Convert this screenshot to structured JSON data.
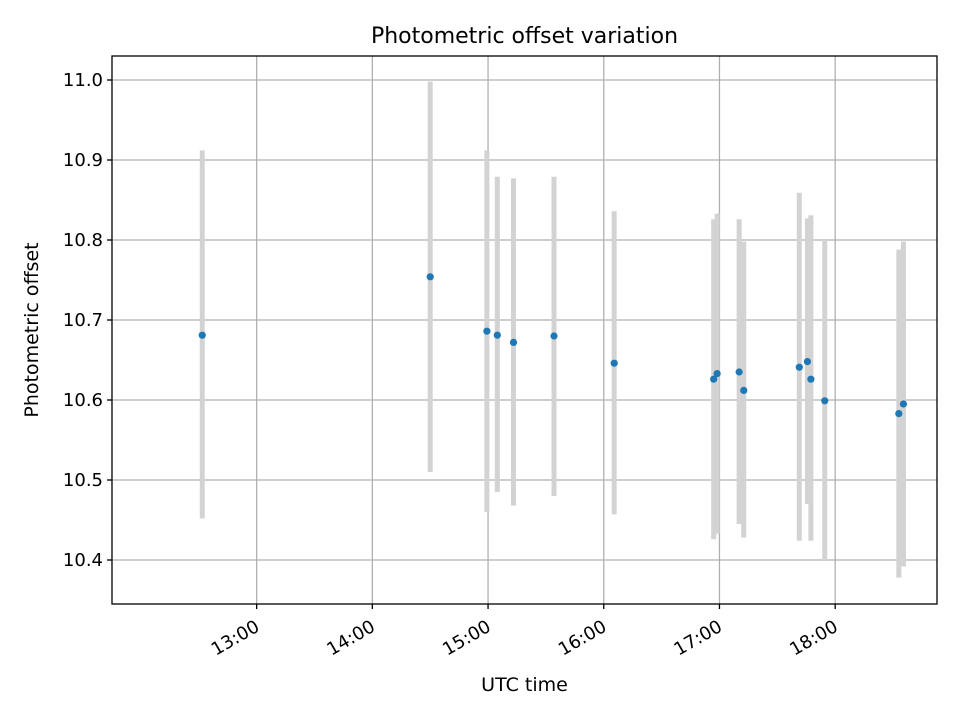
{
  "chart_data": {
    "type": "scatter",
    "title": "Photometric offset variation",
    "xlabel": "UTC time",
    "ylabel": "Photometric offset",
    "x_unit": "hours UTC",
    "xlim": [
      11.75,
      18.88
    ],
    "ylim": [
      10.345,
      11.03
    ],
    "x_ticks": [
      {
        "value": 13,
        "label": "13:00"
      },
      {
        "value": 14,
        "label": "14:00"
      },
      {
        "value": 15,
        "label": "15:00"
      },
      {
        "value": 16,
        "label": "16:00"
      },
      {
        "value": 17,
        "label": "17:00"
      },
      {
        "value": 18,
        "label": "18:00"
      }
    ],
    "y_ticks": [
      {
        "value": 10.4,
        "label": "10.4"
      },
      {
        "value": 10.5,
        "label": "10.5"
      },
      {
        "value": 10.6,
        "label": "10.6"
      },
      {
        "value": 10.7,
        "label": "10.7"
      },
      {
        "value": 10.8,
        "label": "10.8"
      },
      {
        "value": 10.9,
        "label": "10.9"
      },
      {
        "value": 11.0,
        "label": "11.0"
      }
    ],
    "grid": true,
    "point_color": "#1f77b4",
    "errorbar_color": "#d3d3d3",
    "points": [
      {
        "x": 12.53,
        "y": 10.681,
        "ylow": 10.452,
        "yhigh": 10.912
      },
      {
        "x": 14.5,
        "y": 10.754,
        "ylow": 10.51,
        "yhigh": 10.998
      },
      {
        "x": 14.99,
        "y": 10.686,
        "ylow": 10.46,
        "yhigh": 10.912
      },
      {
        "x": 15.08,
        "y": 10.681,
        "ylow": 10.485,
        "yhigh": 10.879
      },
      {
        "x": 15.22,
        "y": 10.672,
        "ylow": 10.468,
        "yhigh": 10.877
      },
      {
        "x": 15.57,
        "y": 10.68,
        "ylow": 10.48,
        "yhigh": 10.879
      },
      {
        "x": 16.09,
        "y": 10.646,
        "ylow": 10.457,
        "yhigh": 10.836
      },
      {
        "x": 16.95,
        "y": 10.626,
        "ylow": 10.426,
        "yhigh": 10.826
      },
      {
        "x": 16.98,
        "y": 10.633,
        "ylow": 10.433,
        "yhigh": 10.833
      },
      {
        "x": 17.17,
        "y": 10.635,
        "ylow": 10.445,
        "yhigh": 10.826
      },
      {
        "x": 17.21,
        "y": 10.612,
        "ylow": 10.428,
        "yhigh": 10.798
      },
      {
        "x": 17.69,
        "y": 10.641,
        "ylow": 10.424,
        "yhigh": 10.859
      },
      {
        "x": 17.76,
        "y": 10.648,
        "ylow": 10.47,
        "yhigh": 10.827
      },
      {
        "x": 17.79,
        "y": 10.626,
        "ylow": 10.424,
        "yhigh": 10.831
      },
      {
        "x": 17.91,
        "y": 10.599,
        "ylow": 10.4,
        "yhigh": 10.8
      },
      {
        "x": 18.55,
        "y": 10.583,
        "ylow": 10.378,
        "yhigh": 10.788
      },
      {
        "x": 18.59,
        "y": 10.595,
        "ylow": 10.392,
        "yhigh": 10.798
      }
    ]
  }
}
